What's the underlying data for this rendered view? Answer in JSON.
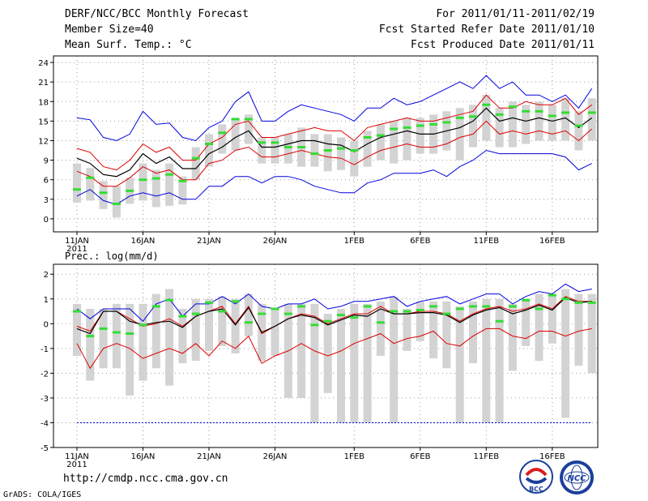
{
  "header": {
    "title": "DERF/NCC/BCC Monthly Forecast",
    "member_size": "Member Size=40",
    "variable": "Mean Surf. Temp.: °C",
    "forecast_period": "For 2011/01/11-2011/02/19",
    "fcst_started": "Fcst Started Refer Date 2011/01/10",
    "fcst_produced": "Fcst Produced Date 2011/01/11"
  },
  "precip_label": "Prec.: log(mm/d)",
  "footer": {
    "url": "http://cmdp.ncc.cma.gov.cn",
    "grads": "GrADS: COLA/IGES",
    "logo_left": "BCC",
    "logo_right": "NCC"
  },
  "colors": {
    "envelope": "#0000dd",
    "spread": "#dd0000",
    "mean": "#000000",
    "observed": "#33dd33",
    "box": "#d3d3d3"
  },
  "chart_data": [
    {
      "type": "line",
      "title": "Mean Surf. Temp.: °C",
      "x_ticks": [
        "11JAN",
        "16JAN",
        "21JAN",
        "26JAN",
        "1FEB",
        "6FEB",
        "11FEB",
        "16FEB"
      ],
      "x_tick_day": [
        0,
        5,
        10,
        15,
        21,
        26,
        31,
        36
      ],
      "x_sublabel": "2011",
      "ylim": [
        -2,
        25
      ],
      "y_ticks": [
        0,
        3,
        6,
        9,
        12,
        15,
        18,
        21,
        24
      ],
      "days": 40,
      "series": [
        {
          "name": "max",
          "values": [
            15.5,
            15.2,
            12.5,
            12.0,
            13.0,
            16.5,
            14.5,
            14.7,
            12.5,
            12.0,
            14.0,
            15.0,
            18.0,
            19.5,
            15.0,
            15.0,
            16.5,
            17.5,
            17.0,
            16.5,
            16.0,
            15.0,
            17.0,
            17.0,
            18.5,
            17.5,
            18.0,
            19.0,
            20.0,
            21.0,
            20.0,
            22.0,
            20.0,
            21.0,
            19.0,
            19.0,
            18.0,
            19.0,
            17.0,
            20.0
          ]
        },
        {
          "name": "upper",
          "values": [
            10.8,
            10.2,
            8.0,
            7.5,
            9.0,
            11.5,
            10.2,
            11.0,
            9.0,
            9.0,
            11.5,
            12.5,
            14.5,
            15.0,
            12.5,
            12.5,
            13.0,
            13.5,
            14.0,
            13.5,
            13.5,
            12.0,
            14.0,
            14.5,
            15.0,
            15.5,
            15.0,
            15.0,
            15.5,
            16.0,
            16.5,
            19.0,
            17.0,
            17.0,
            18.0,
            17.5,
            17.5,
            18.5,
            16.0,
            17.5
          ]
        },
        {
          "name": "mean",
          "values": [
            9.3,
            8.5,
            6.8,
            6.5,
            7.5,
            10.0,
            8.5,
            9.5,
            7.7,
            7.7,
            10.0,
            11.0,
            12.5,
            13.5,
            11.0,
            11.0,
            11.5,
            12.0,
            12.0,
            11.5,
            11.3,
            10.3,
            11.5,
            12.5,
            13.0,
            13.5,
            13.0,
            13.0,
            13.5,
            14.0,
            15.0,
            17.0,
            15.0,
            15.5,
            15.0,
            15.5,
            15.0,
            15.5,
            14.0,
            15.5
          ]
        },
        {
          "name": "lower",
          "values": [
            7.3,
            6.5,
            5.0,
            5.0,
            6.3,
            8.0,
            7.0,
            7.5,
            6.0,
            6.0,
            8.5,
            9.0,
            10.5,
            11.0,
            9.5,
            9.5,
            10.0,
            10.5,
            10.0,
            9.5,
            9.3,
            8.3,
            9.5,
            10.5,
            11.0,
            11.5,
            11.0,
            11.0,
            11.5,
            12.5,
            13.0,
            15.0,
            13.0,
            13.5,
            13.0,
            13.5,
            13.0,
            13.5,
            12.0,
            13.8
          ]
        },
        {
          "name": "min",
          "values": [
            3.5,
            4.5,
            2.8,
            2.2,
            3.5,
            4.0,
            3.5,
            4.0,
            3.0,
            3.0,
            5.0,
            5.0,
            6.5,
            6.5,
            5.5,
            6.5,
            6.5,
            6.0,
            5.0,
            4.5,
            4.0,
            4.0,
            5.5,
            6.0,
            7.0,
            7.0,
            7.0,
            7.5,
            6.5,
            8.0,
            9.0,
            10.5,
            10.0,
            10.0,
            10.0,
            10.0,
            10.0,
            9.5,
            7.5,
            8.5
          ]
        },
        {
          "name": "observed",
          "values": [
            4.5,
            6.3,
            4.0,
            2.3,
            4.3,
            6.0,
            6.2,
            6.8,
            5.8,
            9.3,
            11.5,
            13.2,
            15.3,
            15.3,
            11.7,
            11.7,
            11.0,
            11.0,
            10.0,
            10.5,
            10.8,
            10.5,
            12.5,
            12.8,
            13.8,
            14.0,
            14.3,
            14.5,
            14.8,
            15.5,
            15.7,
            17.5,
            16.0,
            17.2,
            16.5,
            16.5,
            15.8,
            16.3,
            14.3,
            16.3
          ]
        },
        {
          "name": "box_top",
          "values": [
            8.5,
            7.8,
            5.8,
            5.0,
            6.3,
            8.5,
            7.5,
            8.5,
            6.5,
            11.0,
            13.0,
            14.5,
            15.5,
            16.0,
            12.5,
            12.5,
            13.0,
            14.0,
            13.0,
            13.0,
            12.5,
            12.0,
            13.5,
            14.5,
            15.0,
            15.5,
            15.5,
            16.0,
            16.5,
            17.0,
            17.5,
            19.0,
            17.0,
            18.0,
            17.5,
            18.0,
            17.5,
            18.5,
            16.5,
            18.5
          ]
        },
        {
          "name": "box_bottom",
          "values": [
            2.5,
            2.8,
            1.5,
            0.2,
            2.3,
            2.8,
            1.8,
            2.0,
            2.2,
            6.0,
            8.0,
            10.0,
            10.5,
            11.5,
            8.5,
            8.5,
            8.5,
            8.0,
            8.0,
            7.3,
            7.5,
            6.5,
            8.0,
            9.0,
            8.5,
            9.0,
            10.0,
            10.0,
            10.5,
            9.0,
            11.0,
            12.0,
            11.0,
            11.0,
            11.5,
            12.0,
            12.0,
            12.0,
            10.5,
            12.0
          ]
        }
      ]
    },
    {
      "type": "line",
      "title": "Prec.: log(mm/d)",
      "x_ticks": [
        "11JAN",
        "16JAN",
        "21JAN",
        "26JAN",
        "1FEB",
        "6FEB",
        "11FEB",
        "16FEB"
      ],
      "x_tick_day": [
        0,
        5,
        10,
        15,
        21,
        26,
        31,
        36
      ],
      "x_sublabel": "2011",
      "ylim": [
        -5,
        2.4
      ],
      "y_ticks": [
        -5,
        -4,
        -3,
        -2,
        -1,
        0,
        1,
        2
      ],
      "days": 40,
      "series": [
        {
          "name": "max",
          "values": [
            0.6,
            0.2,
            0.6,
            0.6,
            0.6,
            0.1,
            0.8,
            1.0,
            0.3,
            0.8,
            0.8,
            1.1,
            0.8,
            1.2,
            0.7,
            0.6,
            0.8,
            0.8,
            1.0,
            0.6,
            0.7,
            0.9,
            0.9,
            1.0,
            1.1,
            0.7,
            0.9,
            1.0,
            1.1,
            0.8,
            1.0,
            1.2,
            1.2,
            0.8,
            1.1,
            1.3,
            1.2,
            1.6,
            1.3,
            1.4
          ]
        },
        {
          "name": "upper",
          "values": [
            -0.1,
            -0.3,
            0.5,
            0.5,
            0.2,
            -0.1,
            0.0,
            0.2,
            -0.1,
            0.3,
            0.5,
            0.7,
            0.0,
            0.7,
            -0.4,
            -0.1,
            0.2,
            0.4,
            0.3,
            0.0,
            0.2,
            0.4,
            0.4,
            0.7,
            0.4,
            0.4,
            0.5,
            0.5,
            0.4,
            0.1,
            0.4,
            0.6,
            0.7,
            0.5,
            0.6,
            0.8,
            0.6,
            1.1,
            0.9,
            0.9
          ]
        },
        {
          "name": "mean",
          "values": [
            -0.2,
            -0.4,
            0.5,
            0.5,
            0.1,
            -0.05,
            0.05,
            0.1,
            -0.15,
            0.3,
            0.5,
            0.6,
            -0.05,
            0.65,
            -0.35,
            -0.1,
            0.2,
            0.35,
            0.25,
            -0.05,
            0.15,
            0.35,
            0.3,
            0.6,
            0.4,
            0.4,
            0.45,
            0.45,
            0.35,
            0.05,
            0.35,
            0.55,
            0.65,
            0.4,
            0.55,
            0.75,
            0.55,
            1.05,
            0.85,
            0.9
          ]
        },
        {
          "name": "lower",
          "values": [
            -0.8,
            -1.8,
            -1.0,
            -0.8,
            -1.0,
            -1.4,
            -1.2,
            -1.0,
            -1.2,
            -0.8,
            -1.3,
            -0.7,
            -1.0,
            -0.5,
            -1.6,
            -1.3,
            -1.1,
            -0.8,
            -1.1,
            -1.3,
            -1.1,
            -0.8,
            -0.6,
            -0.4,
            -0.8,
            -0.6,
            -0.5,
            -0.3,
            -0.8,
            -0.9,
            -0.5,
            -0.2,
            -0.2,
            -0.5,
            -0.6,
            -0.3,
            -0.3,
            -0.5,
            -0.3,
            -0.2
          ]
        },
        {
          "name": "min",
          "values": [
            -4.0,
            -4.0,
            -4.0,
            -4.0,
            -4.0,
            -4.0,
            -4.0,
            -4.0,
            -4.0,
            -4.0,
            -4.0,
            -4.0,
            -4.0,
            -4.0,
            -4.0,
            -4.0,
            -4.0,
            -4.0,
            -4.0,
            -4.0,
            -4.0,
            -4.0,
            -4.0,
            -4.0,
            -4.0,
            -4.0,
            -4.0,
            -4.0,
            -4.0,
            -4.0,
            -4.0,
            -4.0,
            -4.0,
            -4.0,
            -4.0,
            -4.0,
            -4.0,
            -4.0,
            -4.0,
            -4.0
          ]
        },
        {
          "name": "observed",
          "values": [
            0.5,
            -0.5,
            -0.2,
            -0.35,
            -0.4,
            -0.05,
            0.7,
            0.95,
            0.3,
            0.4,
            0.85,
            0.5,
            0.9,
            0.05,
            0.4,
            0.6,
            0.4,
            0.7,
            -0.05,
            0.1,
            0.35,
            0.25,
            0.7,
            0.05,
            0.5,
            0.5,
            0.55,
            0.7,
            0.4,
            0.6,
            0.7,
            0.7,
            0.1,
            0.7,
            0.95,
            0.6,
            1.15,
            1.0,
            0.85,
            0.85
          ]
        },
        {
          "name": "box_top",
          "values": [
            0.8,
            0.6,
            0.6,
            0.8,
            0.8,
            0.8,
            1.2,
            1.4,
            0.6,
            1.0,
            1.0,
            1.1,
            1.0,
            1.2,
            0.8,
            0.6,
            0.8,
            0.8,
            0.8,
            0.4,
            0.6,
            0.8,
            0.8,
            0.9,
            1.1,
            0.6,
            0.9,
            0.9,
            0.9,
            0.7,
            0.9,
            1.0,
            1.0,
            0.8,
            1.0,
            1.2,
            1.2,
            1.4,
            1.2,
            1.2
          ]
        },
        {
          "name": "box_bottom",
          "values": [
            -1.3,
            -2.3,
            -1.8,
            -1.8,
            -2.9,
            -2.3,
            -1.8,
            -2.5,
            -1.6,
            -1.5,
            -1.1,
            -0.9,
            -1.2,
            -0.5,
            -1.5,
            -1.3,
            -3.0,
            -3.0,
            -4.0,
            -2.8,
            -4.0,
            -4.0,
            -4.0,
            -1.3,
            -4.0,
            -1.1,
            -0.7,
            -1.4,
            -1.8,
            -4.0,
            -1.6,
            -4.0,
            -4.0,
            -1.9,
            -0.9,
            -1.5,
            -0.8,
            -3.8,
            -1.7,
            -2.0
          ]
        }
      ]
    }
  ]
}
